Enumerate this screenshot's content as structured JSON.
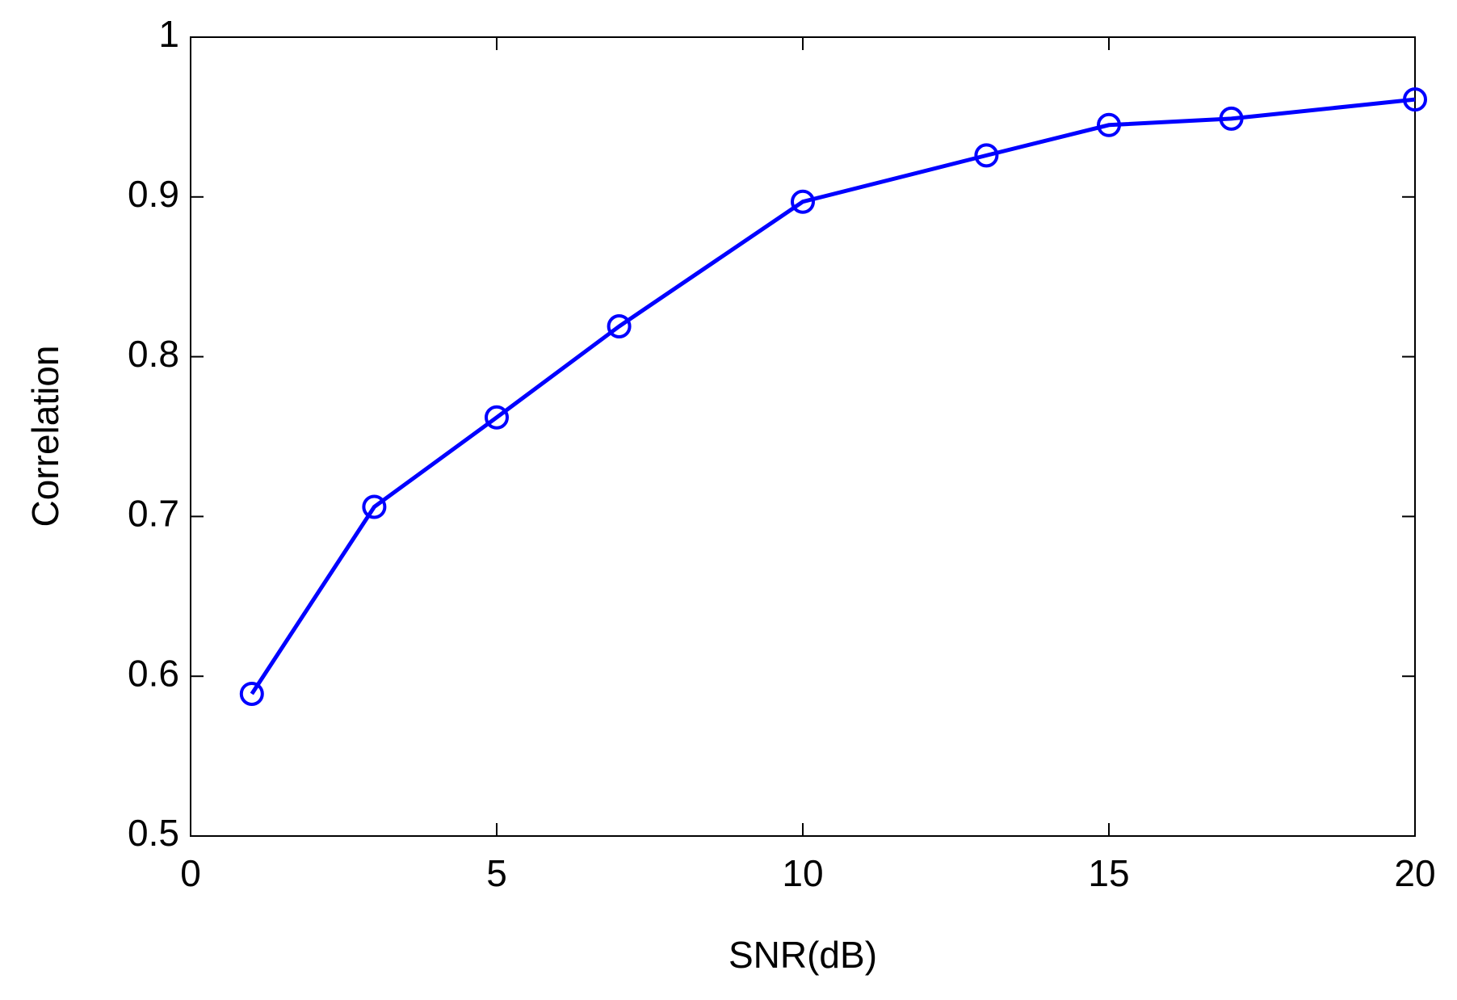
{
  "chart_data": {
    "type": "line",
    "xlabel": "SNR(dB)",
    "ylabel": "Correlation",
    "x": [
      1,
      3,
      5,
      7,
      10,
      13,
      15,
      17,
      20
    ],
    "values": [
      0.589,
      0.706,
      0.762,
      0.819,
      0.897,
      0.926,
      0.945,
      0.949,
      0.961
    ],
    "color": "#0000ff",
    "marker": "circle",
    "xlim": [
      0,
      20
    ],
    "xticks": [
      0,
      5,
      10,
      15,
      20
    ],
    "ylim": [
      0.5,
      1
    ],
    "yticks": [
      0.5,
      0.6,
      0.7,
      0.8,
      0.9,
      1
    ],
    "grid": false
  }
}
